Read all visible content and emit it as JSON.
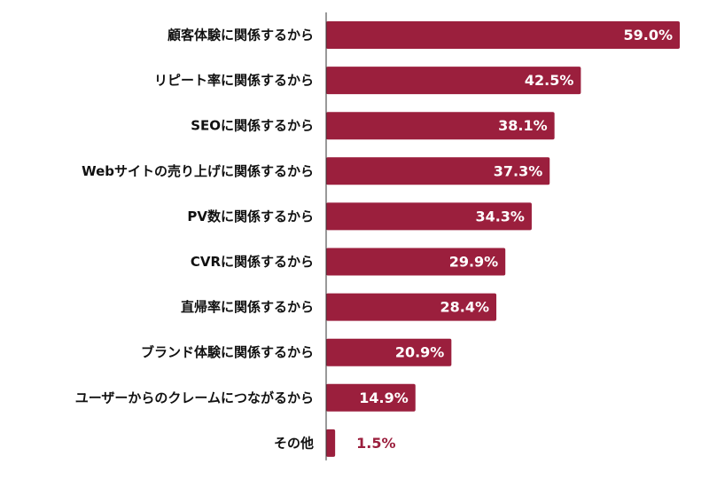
{
  "chart_data": {
    "type": "bar",
    "orientation": "horizontal",
    "categories": [
      "顧客体験に関係するから",
      "リピート率に関係するから",
      "SEOに関係するから",
      "Webサイトの売り上げに関係するから",
      "PV数に関係するから",
      "CVRに関係するから",
      "直帰率に関係するから",
      "ブランド体験に関係するから",
      "ユーザーからのクレームにつながるから",
      "その他"
    ],
    "values": [
      59.0,
      42.5,
      38.1,
      37.3,
      34.3,
      29.9,
      28.4,
      20.9,
      14.9,
      1.5
    ],
    "value_labels": [
      "59.0%",
      "42.5%",
      "38.1%",
      "37.3%",
      "34.3%",
      "29.9%",
      "28.4%",
      "20.9%",
      "14.9%",
      "1.5%"
    ],
    "xlim": [
      0,
      59.0
    ],
    "grid": false,
    "legend": "none"
  },
  "colors": {
    "bar": "#9b1f3d",
    "value_inside": "#ffffff",
    "value_outside": "#9b1f3d",
    "axis": "#333333"
  }
}
